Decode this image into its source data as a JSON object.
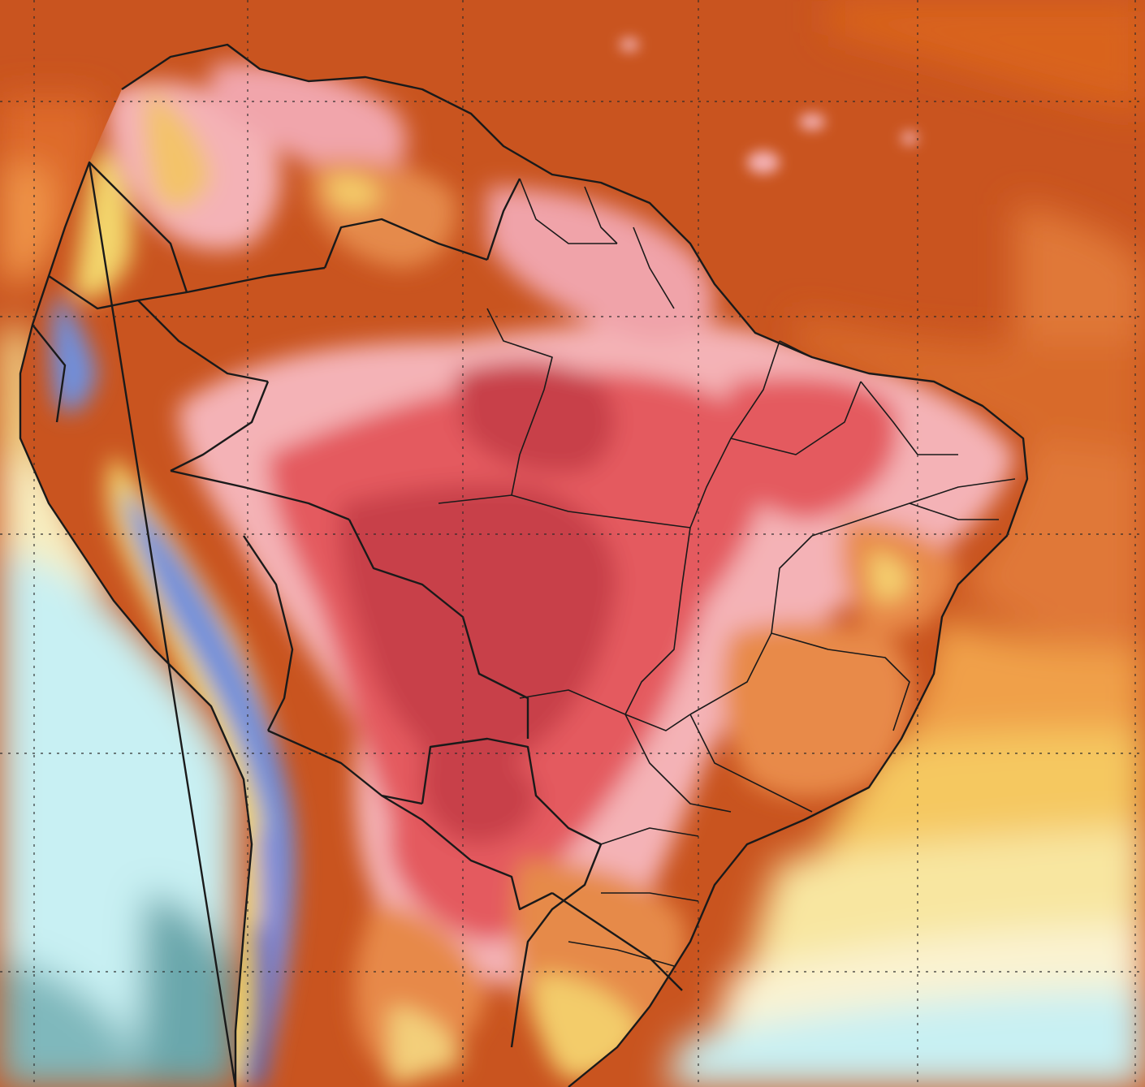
{
  "map": {
    "type": "temperature-anomaly",
    "region": "South America",
    "graticule": "dotted",
    "borders": "country-and-state",
    "colors": {
      "ocean_warm": "#c9541f",
      "ocean_orange": "#e07838",
      "ocean_light_orange": "#f0a048",
      "ocean_yellow": "#f5c860",
      "ocean_pale_yellow": "#f8e6a0",
      "ocean_cream": "#faf3d2",
      "ocean_pale_cyan": "#c8f0f3",
      "ocean_teal": "#6aa7ac",
      "heat_pink_light": "#f4b2b6",
      "heat_pink": "#ef9fa6",
      "heat_red": "#e45a5e",
      "heat_dark_red": "#c84048",
      "andes_yellow": "#f3d56c",
      "andes_blue": "#6f8fdc",
      "andes_violet": "#8a88d8",
      "andes_navy": "#1a237e",
      "border": "#1a1a1a",
      "grid": "#2a2a2a"
    }
  }
}
